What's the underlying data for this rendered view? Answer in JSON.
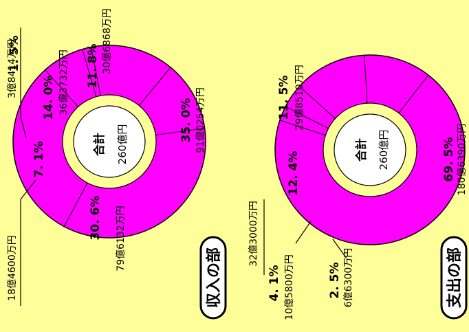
{
  "page": {
    "background": "#ffff99",
    "ring_color": "#ff00ff",
    "hole_ring_color": "#ffff99",
    "center_color": "#ffffff",
    "outline_color": "#000000"
  },
  "chart_data": [
    {
      "type": "pie",
      "title": "収入の部",
      "center_label": "合計",
      "total_label": "260億円",
      "slices": [
        {
          "percent_label": "35. 0%",
          "amount_label": "91億0254万円",
          "value": 35.0
        },
        {
          "percent_label": "30. 6%",
          "amount_label": "79億6132万円",
          "value": 30.6
        },
        {
          "percent_label": "7. 1%",
          "amount_label": "18億4600万円",
          "value": 7.1
        },
        {
          "percent_label": "1. 5%",
          "amount_label": "3億8414万円",
          "value": 1.5
        },
        {
          "percent_label": "14. 0%",
          "amount_label": "36億3732万円",
          "value": 14.0
        },
        {
          "percent_label": "11. 8%",
          "amount_label": "30億6868万円",
          "value": 11.8
        }
      ]
    },
    {
      "type": "pie",
      "title": "支出の部",
      "center_label": "合計",
      "total_label": "260億円",
      "slices": [
        {
          "percent_label": "69. 5%",
          "amount_label": "180億6390万円",
          "value": 69.5
        },
        {
          "percent_label": "2. 5%",
          "amount_label": "6億6300万円",
          "value": 2.5
        },
        {
          "percent_label": "4. 1%",
          "amount_label": "10億5800万円",
          "value": 4.1
        },
        {
          "percent_label": "12. 4%",
          "amount_label": "32億3000万円",
          "value": 12.4
        },
        {
          "percent_label": "11. 5%",
          "amount_label": "29億8510万円",
          "value": 11.5
        }
      ]
    }
  ]
}
